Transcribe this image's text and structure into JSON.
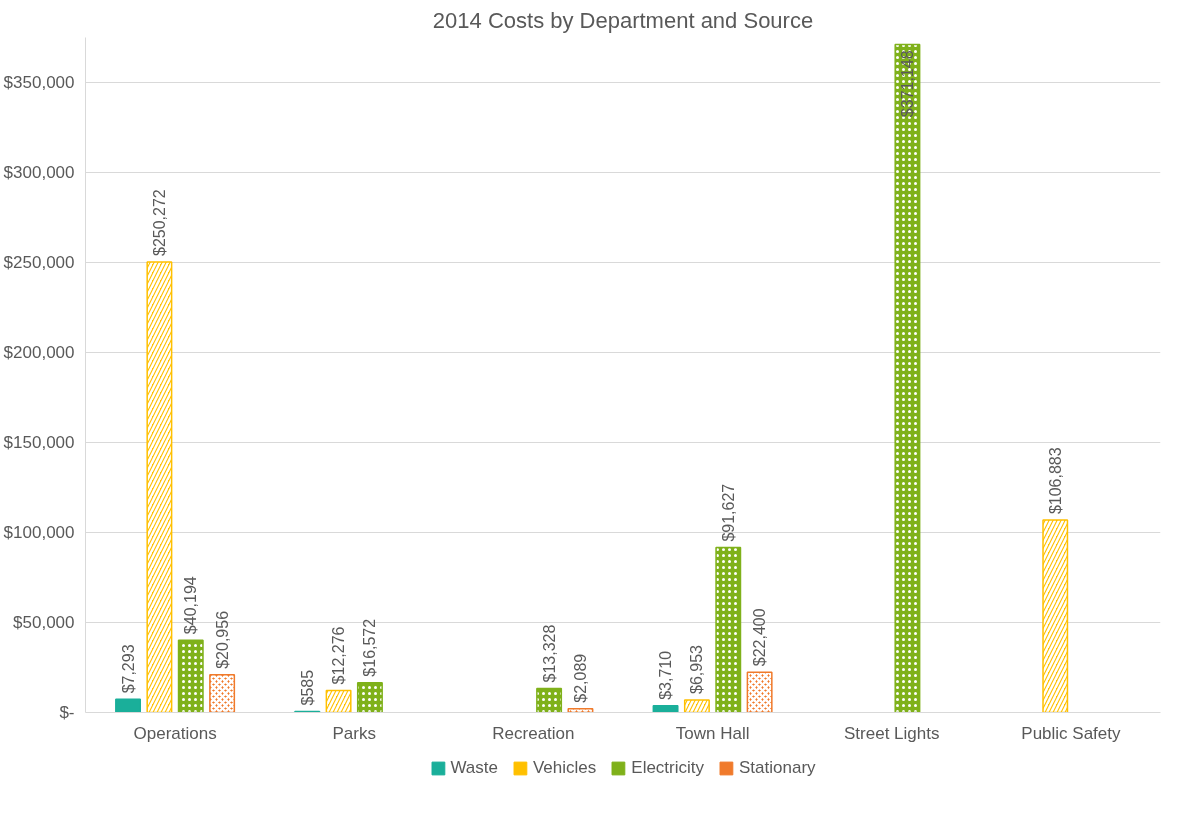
{
  "chart_data": {
    "type": "bar",
    "title": "2014 Costs by Department and Source",
    "categories": [
      "Operations",
      "Parks",
      "Recreation",
      "Town Hall",
      "Street Lights",
      "Public Safety"
    ],
    "series": [
      {
        "name": "Waste",
        "color": "#1aaf9a",
        "values": [
          7293,
          585,
          null,
          3710,
          null,
          null
        ],
        "value_labels": [
          "$7,293",
          "$585",
          null,
          "$3,710",
          null,
          null
        ]
      },
      {
        "name": "Vehicles",
        "color": "#ffc000",
        "values": [
          250272,
          12276,
          null,
          6953,
          null,
          106883
        ],
        "value_labels": [
          "$250,272",
          "$12,276",
          null,
          "$6,953",
          null,
          "$106,883"
        ]
      },
      {
        "name": "Electricity",
        "color": "#7fb11a",
        "values": [
          40194,
          16572,
          13328,
          91627,
          371148,
          null
        ],
        "value_labels": [
          "$40,194",
          "$16,572",
          "$13,328",
          "$91,627",
          "$371,148",
          null
        ]
      },
      {
        "name": "Stationary",
        "color": "#f07a2b",
        "values": [
          20956,
          null,
          2089,
          22400,
          null,
          null
        ],
        "value_labels": [
          "$20,956",
          null,
          "$2,089",
          "$22,400",
          null,
          null
        ]
      }
    ],
    "ylim": [
      0,
      375000
    ],
    "yticks": [
      {
        "value": 0,
        "label": "$-"
      },
      {
        "value": 50000,
        "label": "$50,000"
      },
      {
        "value": 100000,
        "label": "$100,000"
      },
      {
        "value": 150000,
        "label": "$150,000"
      },
      {
        "value": 200000,
        "label": "$200,000"
      },
      {
        "value": 250000,
        "label": "$250,000"
      },
      {
        "value": 300000,
        "label": "$300,000"
      },
      {
        "value": 350000,
        "label": "$350,000"
      }
    ],
    "grid": "y",
    "legend": "bottom"
  }
}
